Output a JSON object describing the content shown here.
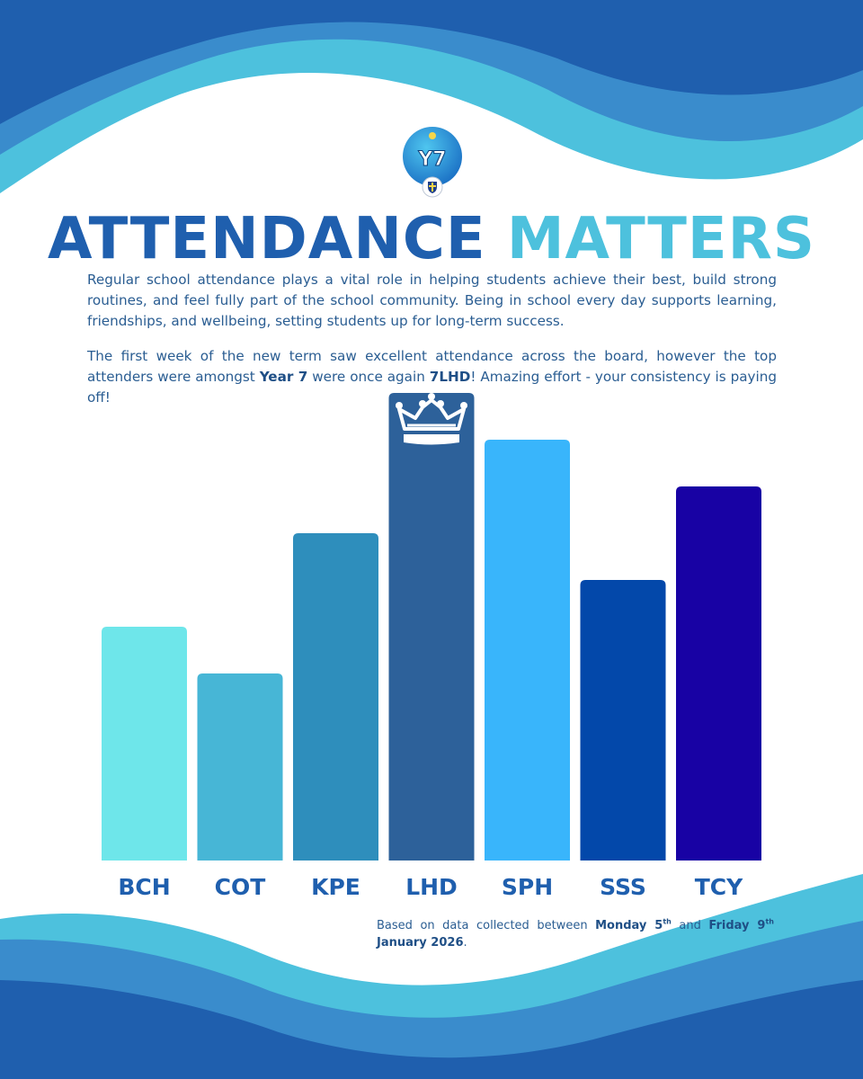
{
  "header": {
    "badge_text": "Y7",
    "title_part1": "ATTENDANCE",
    "title_part2": "MATTERS"
  },
  "intro": {
    "paragraph1": "Regular school attendance plays a vital role in helping students achieve their best, build strong routines, and feel fully part of the school community. Being in school every day supports learning, friendships, and wellbeing, setting students up for long-term success.",
    "p2_a": "The first week of the new term saw excellent attendance across the board, however the top attenders were amongst ",
    "p2_b": "Year 7",
    "p2_c": " were once again ",
    "p2_d": "7LHD",
    "p2_e": "! Amazing effort - your consistency is paying off!"
  },
  "footnote": {
    "a": "Based on data collected between ",
    "b": "Monday 5",
    "b_sup": "th",
    "c": " and ",
    "d": "Friday 9",
    "d_sup": "th",
    "e": "January 2026",
    "f": "."
  },
  "colors": {
    "title_dark": "#1f5fae",
    "title_light": "#4dc1dd",
    "wave_dark": "#1f5fae",
    "wave_mid": "#3a8ccc",
    "wave_light": "#4dc1dd"
  },
  "chart_data": {
    "type": "bar",
    "categories": [
      "BCH",
      "COT",
      "KPE",
      "LHD",
      "SPH",
      "SSS",
      "TCY"
    ],
    "values": [
      50,
      40,
      70,
      100,
      90,
      60,
      80
    ],
    "bar_colors": [
      "#6ee6ea",
      "#47b6d6",
      "#2e8ebc",
      "#2d619a",
      "#39b5fb",
      "#0348aa",
      "#1802a4"
    ],
    "highlight": "LHD",
    "highlight_icon": "crown-icon",
    "title": "",
    "xlabel": "",
    "ylabel": "",
    "ylim": [
      0,
      100
    ],
    "grid": false,
    "legend": "none"
  }
}
